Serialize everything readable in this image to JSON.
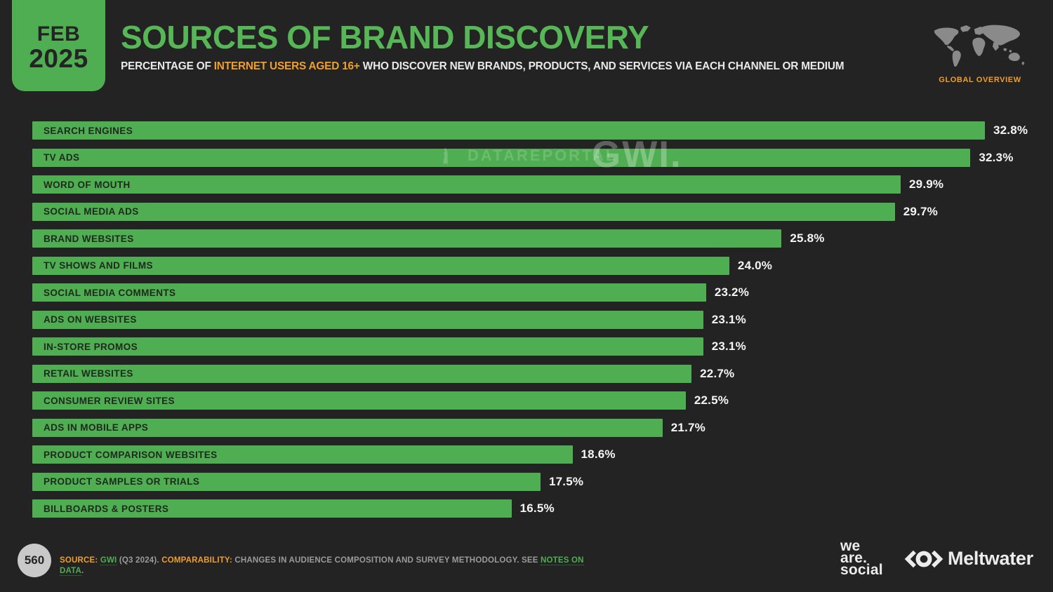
{
  "header": {
    "date_badge": {
      "month": "FEB",
      "year": "2025"
    },
    "title": "SOURCES OF BRAND DISCOVERY",
    "subtitle_prefix": "PERCENTAGE OF ",
    "subtitle_highlight": "INTERNET USERS AGED 16+",
    "subtitle_suffix": " WHO DISCOVER NEW BRANDS, PRODUCTS, AND SERVICES VIA EACH CHANNEL OR MEDIUM",
    "region_label": "GLOBAL OVERVIEW"
  },
  "watermarks": {
    "datareportal": "DATAREPORTAL",
    "gwi": "GWI."
  },
  "chart_data": {
    "type": "bar",
    "orientation": "horizontal",
    "title": "SOURCES OF BRAND DISCOVERY",
    "xlabel": "",
    "ylabel": "",
    "xlim": [
      0,
      32.8
    ],
    "grid": false,
    "legend": false,
    "value_suffix": "%",
    "bar_color": "#4fae52",
    "categories": [
      "SEARCH ENGINES",
      "TV ADS",
      "WORD OF MOUTH",
      "SOCIAL MEDIA ADS",
      "BRAND WEBSITES",
      "TV SHOWS AND FILMS",
      "SOCIAL MEDIA COMMENTS",
      "ADS ON WEBSITES",
      "IN-STORE PROMOS",
      "RETAIL WEBSITES",
      "CONSUMER REVIEW SITES",
      "ADS IN MOBILE APPS",
      "PRODUCT COMPARISON WEBSITES",
      "PRODUCT SAMPLES OR TRIALS",
      "BILLBOARDS & POSTERS"
    ],
    "values": [
      32.8,
      32.3,
      29.9,
      29.7,
      25.8,
      24.0,
      23.2,
      23.1,
      23.1,
      22.7,
      22.5,
      21.7,
      18.6,
      17.5,
      16.5
    ]
  },
  "footer": {
    "page_number": "560",
    "source_label": "SOURCE:",
    "source_link": "GWI",
    "source_detail": " (Q3 2024). ",
    "comparability_label": "COMPARABILITY:",
    "comparability_text": " CHANGES IN AUDIENCE COMPOSITION AND SURVEY METHODOLOGY. SEE ",
    "notes_link": "NOTES ON DATA",
    "notes_suffix": ".",
    "we_are_social": {
      "line1": "we",
      "line2": "are.",
      "line3": "social"
    },
    "meltwater": "Meltwater"
  },
  "colors": {
    "background": "#232323",
    "bar_green": "#4fae52",
    "title_green": "#57b757",
    "accent_orange": "#f09e2e",
    "bar_label_text": "#20291f",
    "value_text": "#f5f5f5",
    "footer_text": "#9b9b9b",
    "map_gray": "#8a8a8a"
  }
}
